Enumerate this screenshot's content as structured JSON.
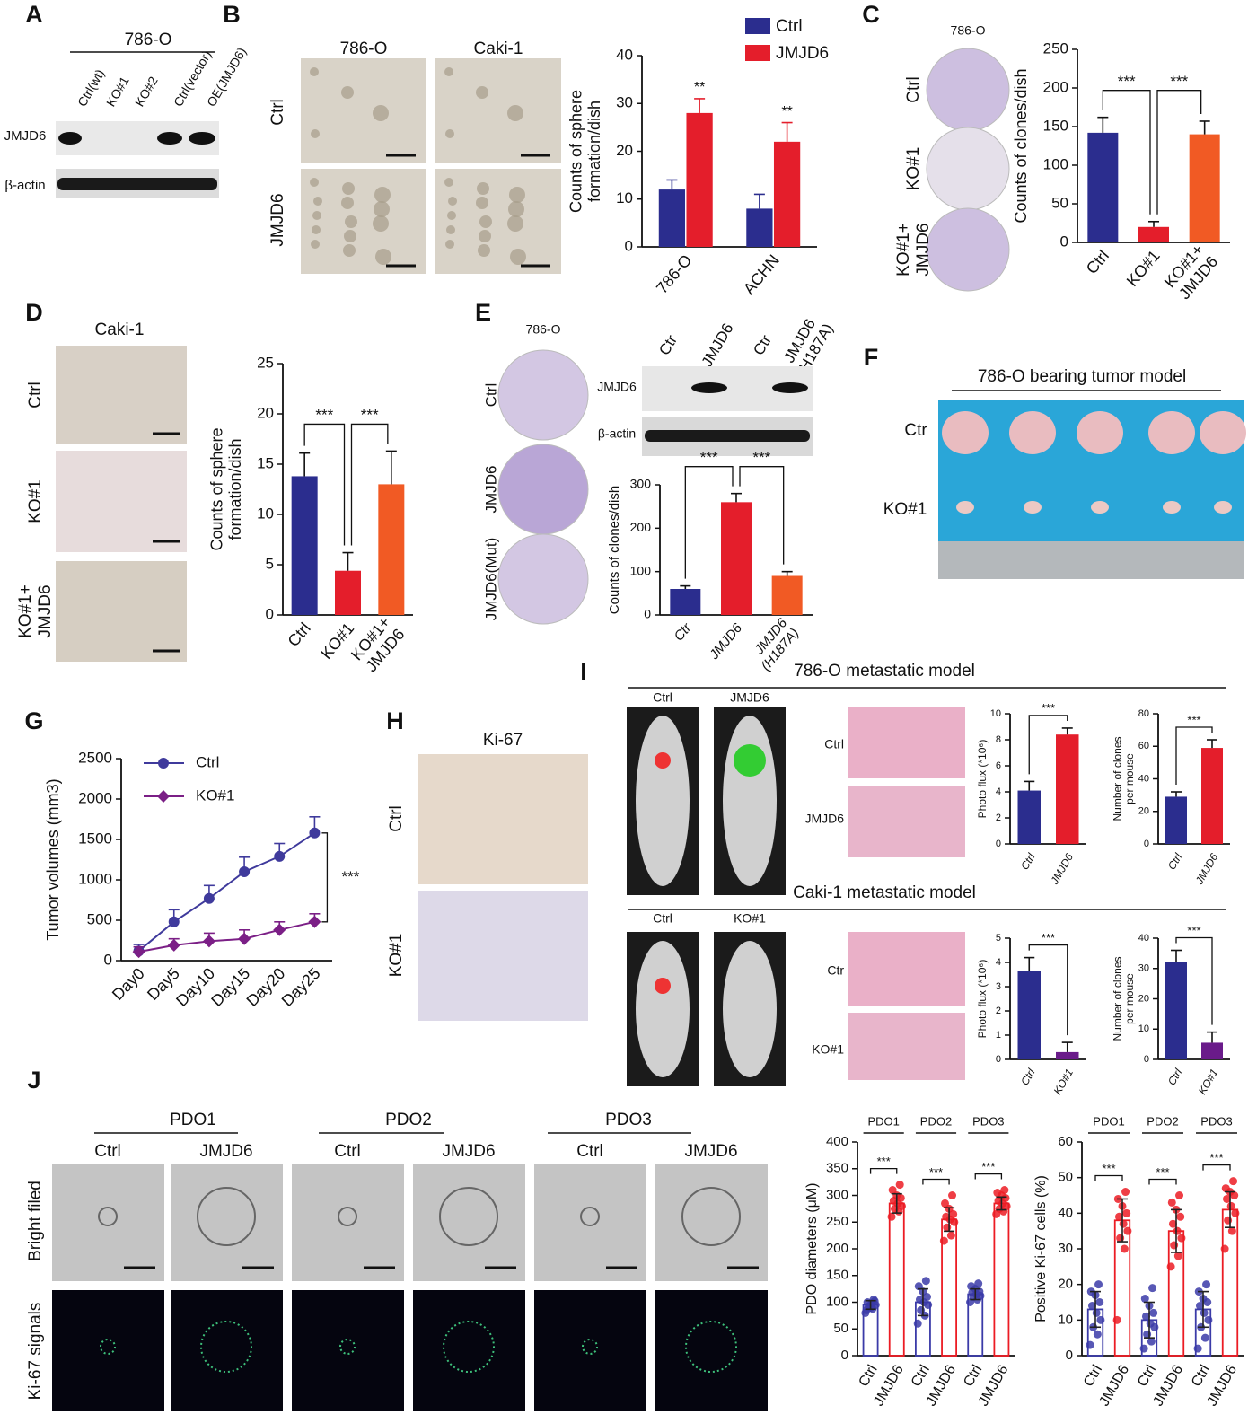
{
  "figure": {
    "panels": [
      "A",
      "B",
      "C",
      "D",
      "E",
      "F",
      "G",
      "H",
      "I",
      "J"
    ],
    "a": {
      "title": "786-O",
      "lanes": [
        "Ctrl(wt)",
        "KO#1",
        "KO#2",
        "Ctrl(vector)",
        "OE(JMJD6)"
      ],
      "rows": [
        "JMJD6",
        "β-actin"
      ]
    },
    "b": {
      "columns": [
        "786-O",
        "Caki-1"
      ],
      "rows": [
        "Ctrl",
        "JMJD6"
      ]
    },
    "c": {
      "title": "786-O",
      "rows": [
        "Ctrl",
        "KO#1",
        [
          "KO#1+",
          "JMJD6"
        ]
      ]
    },
    "d": {
      "title": "Caki-1",
      "rows": [
        "Ctrl",
        "KO#1",
        [
          "KO#1+",
          "JMJD6"
        ]
      ]
    },
    "e": {
      "title": "786-O",
      "rows": [
        "Ctrl",
        "JMJD6",
        "JMJD6(Mut)"
      ],
      "lanes": [
        "Ctr",
        "JMJD6",
        "Ctr",
        [
          "JMJD6",
          "(H187A)"
        ]
      ],
      "blot_rows": [
        "JMJD6",
        "β-actin"
      ]
    },
    "f": {
      "title": "786-O bearing tumor model",
      "rows": [
        "Ctr",
        "KO#1"
      ]
    },
    "h": {
      "title": "Ki-67",
      "rows": [
        "Ctrl",
        "KO#1"
      ]
    },
    "i": {
      "titles": [
        "786-O  metastatic model",
        "Caki-1 metastatic model"
      ],
      "mice": [
        [
          "Ctrl",
          "JMJD6"
        ],
        [
          "Ctrl",
          "KO#1"
        ]
      ],
      "histo": [
        [
          "Ctrl",
          "JMJD6"
        ],
        [
          "Ctr",
          "KO#1"
        ]
      ]
    },
    "j": {
      "groups": [
        "PDO1",
        "PDO2",
        "PDO3"
      ],
      "columns": [
        "Ctrl",
        "JMJD6",
        "Ctrl",
        "JMJD6",
        "Ctrl",
        "JMJD6"
      ],
      "rows": [
        "Bright filed",
        "Ki-67 signals"
      ]
    }
  },
  "chart_data": [
    {
      "type": "bar",
      "ylabel": [
        "Counts of sphere",
        "formation/dish"
      ],
      "categories": [
        "786-O",
        "ACHN"
      ],
      "series": [
        {
          "name": "Ctrl",
          "color": "#2b2d8e",
          "values": [
            12,
            8
          ],
          "errors": [
            2,
            3
          ]
        },
        {
          "name": "JMJD6",
          "color": "#e41e2b",
          "values": [
            28,
            22
          ],
          "errors": [
            3,
            4
          ]
        }
      ],
      "ylim": [
        0,
        40
      ],
      "yticks": [
        0,
        10,
        20,
        30,
        40
      ],
      "annotations": [
        "**",
        "**"
      ],
      "legend": true
    },
    {
      "type": "bar",
      "ylabel": [
        "Counts of clones/dish"
      ],
      "categories": [
        "Ctrl",
        "KO#1",
        [
          "KO#1+",
          "JMJD6"
        ]
      ],
      "values": [
        142,
        20,
        140
      ],
      "errors": [
        20,
        7,
        17
      ],
      "colors": [
        "#2b2d8e",
        "#e41e2b",
        "#f15a24"
      ],
      "ylim": [
        0,
        250
      ],
      "yticks": [
        0,
        50,
        100,
        150,
        200,
        250
      ],
      "annotations": [
        "***",
        "***"
      ]
    },
    {
      "type": "bar",
      "ylabel": [
        "Counts of sphere",
        "formation/dish"
      ],
      "categories": [
        "Ctrl",
        "KO#1",
        [
          "KO#1+",
          "JMJD6"
        ]
      ],
      "values": [
        13.8,
        4.4,
        13
      ],
      "errors": [
        2.3,
        1.8,
        3.3
      ],
      "colors": [
        "#2b2d8e",
        "#e41e2b",
        "#f15a24"
      ],
      "ylim": [
        0,
        25
      ],
      "yticks": [
        0,
        5,
        10,
        15,
        20,
        25
      ],
      "annotations": [
        "***",
        "***"
      ]
    },
    {
      "type": "bar",
      "ylabel": [
        "Counts of clones/dish"
      ],
      "categories": [
        "Ctr",
        "JMJD6",
        [
          "JMJD6",
          "(H187A)"
        ]
      ],
      "values": [
        60,
        260,
        90
      ],
      "errors": [
        7,
        20,
        10
      ],
      "colors": [
        "#2b2d8e",
        "#e41e2b",
        "#f15a24"
      ],
      "ylim": [
        0,
        300
      ],
      "yticks": [
        0,
        100,
        200,
        300
      ],
      "annotations": [
        "***",
        "***"
      ]
    },
    {
      "type": "line",
      "ylabel": [
        "Tumor volumes (mm3)"
      ],
      "x": [
        "Day0",
        "Day5",
        "Day10",
        "Day15",
        "Day20",
        "Day25"
      ],
      "series": [
        {
          "name": "Ctrl",
          "color": "#3f3a9c",
          "marker": "circle",
          "values": [
            120,
            480,
            770,
            1100,
            1290,
            1580
          ],
          "errors": [
            80,
            150,
            160,
            180,
            160,
            200
          ]
        },
        {
          "name": "KO#1",
          "color": "#7b1f86",
          "marker": "diamond",
          "values": [
            110,
            190,
            240,
            270,
            380,
            480
          ],
          "errors": [
            60,
            80,
            100,
            110,
            100,
            100
          ]
        }
      ],
      "ylim": [
        0,
        2500
      ],
      "yticks": [
        0,
        500,
        1000,
        1500,
        2000,
        2500
      ],
      "annotations": [
        "***"
      ],
      "legend": true
    },
    {
      "type": "bar",
      "ylabel": [
        "Photo flux (*10⁶)"
      ],
      "categories": [
        "Ctrl",
        "JMJD6"
      ],
      "values": [
        4.1,
        8.4
      ],
      "errors": [
        0.7,
        0.5
      ],
      "colors": [
        "#2b2d8e",
        "#e41e2b"
      ],
      "ylim": [
        0,
        10
      ],
      "yticks": [
        0,
        2,
        4,
        6,
        8,
        10
      ],
      "annotations": [
        "***"
      ]
    },
    {
      "type": "bar",
      "ylabel": [
        "Number of clones",
        "per mouse"
      ],
      "categories": [
        "Ctrl",
        "JMJD6"
      ],
      "values": [
        29,
        59
      ],
      "errors": [
        3,
        5
      ],
      "colors": [
        "#2b2d8e",
        "#e41e2b"
      ],
      "ylim": [
        0,
        80
      ],
      "yticks": [
        0,
        20,
        40,
        60,
        80
      ],
      "annotations": [
        "***"
      ]
    },
    {
      "type": "bar",
      "ylabel": [
        "Photo flux (*10⁶)"
      ],
      "categories": [
        "Ctrl",
        "KO#1"
      ],
      "values": [
        3.65,
        0.3
      ],
      "errors": [
        0.55,
        0.4
      ],
      "colors": [
        "#2b2d8e",
        "#6a1b8a"
      ],
      "ylim": [
        0,
        5
      ],
      "yticks": [
        0,
        1,
        2,
        3,
        4,
        5
      ],
      "annotations": [
        "***"
      ]
    },
    {
      "type": "bar",
      "ylabel": [
        "Number of clones",
        "per mouse"
      ],
      "categories": [
        "Ctrl",
        "KO#1"
      ],
      "values": [
        32,
        5.5
      ],
      "errors": [
        4,
        3.5
      ],
      "colors": [
        "#2b2d8e",
        "#6a1b8a"
      ],
      "ylim": [
        0,
        40
      ],
      "yticks": [
        0,
        10,
        20,
        30,
        40
      ],
      "annotations": [
        "***"
      ]
    },
    {
      "type": "dotbar",
      "ylabel": [
        "PDO diameters (μM)"
      ],
      "groups": [
        "PDO1",
        "PDO2",
        "PDO3"
      ],
      "categories": [
        "Ctrl",
        "JMJD6",
        "Ctrl",
        "JMJD6",
        "Ctrl",
        "JMJD6"
      ],
      "values": [
        95,
        285,
        100,
        255,
        115,
        285
      ],
      "errors": [
        8,
        18,
        25,
        22,
        10,
        12
      ],
      "colors": [
        "#3b3ba8",
        "#ec1c24",
        "#3b3ba8",
        "#ec1c24",
        "#3b3ba8",
        "#ec1c24"
      ],
      "points": [
        [
          80,
          88,
          92,
          95,
          98,
          100,
          102,
          90,
          85,
          105
        ],
        [
          260,
          270,
          275,
          280,
          285,
          290,
          295,
          300,
          310,
          320
        ],
        [
          60,
          75,
          85,
          95,
          100,
          105,
          110,
          120,
          130,
          140
        ],
        [
          215,
          225,
          240,
          250,
          255,
          260,
          265,
          275,
          285,
          300
        ],
        [
          100,
          105,
          110,
          112,
          115,
          118,
          120,
          125,
          130,
          135
        ],
        [
          265,
          270,
          275,
          280,
          285,
          290,
          295,
          300,
          305,
          310
        ]
      ],
      "ylim": [
        0,
        400
      ],
      "yticks": [
        0,
        50,
        100,
        150,
        200,
        250,
        300,
        350,
        400
      ],
      "annotations": [
        "***",
        "***",
        "***"
      ]
    },
    {
      "type": "dotbar",
      "ylabel": [
        "Positive Ki-67 cells (%)"
      ],
      "groups": [
        "PDO1",
        "PDO2",
        "PDO3"
      ],
      "categories": [
        "Ctrl",
        "JMJD6",
        "Ctrl",
        "JMJD6",
        "Ctrl",
        "JMJD6"
      ],
      "values": [
        13,
        38,
        10,
        35,
        13,
        41
      ],
      "errors": [
        5,
        6,
        5,
        6,
        5,
        5
      ],
      "colors": [
        "#3b3ba8",
        "#ec1c24",
        "#3b3ba8",
        "#ec1c24",
        "#3b3ba8",
        "#ec1c24"
      ],
      "points": [
        [
          3,
          6,
          8,
          10,
          12,
          14,
          15,
          17,
          18,
          20
        ],
        [
          10,
          30,
          33,
          35,
          37,
          39,
          40,
          42,
          44,
          46
        ],
        [
          2,
          4,
          6,
          8,
          9,
          11,
          12,
          14,
          16,
          19
        ],
        [
          25,
          28,
          31,
          33,
          35,
          37,
          39,
          41,
          43,
          45
        ],
        [
          2,
          5,
          8,
          10,
          12,
          14,
          15,
          16,
          18,
          20
        ],
        [
          30,
          35,
          38,
          40,
          42,
          44,
          45,
          46,
          47,
          49
        ]
      ],
      "ylim": [
        0,
        60
      ],
      "yticks": [
        0,
        10,
        20,
        30,
        40,
        50,
        60
      ],
      "annotations": [
        "***",
        "***",
        "***"
      ]
    }
  ]
}
